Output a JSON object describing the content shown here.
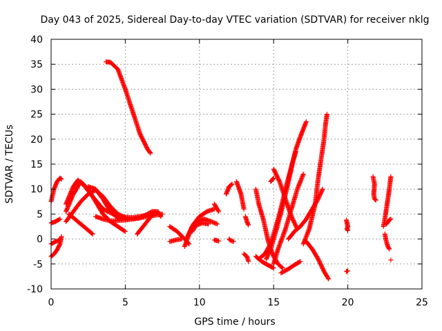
{
  "chart_data": {
    "type": "scatter",
    "title": "Day 043 of 2025, Sidereal Day-to-day VTEC variation (SDTVAR) for receiver nklg",
    "xlabel": "GPS time / hours",
    "ylabel": "SDTVAR / TECUs",
    "xlim": [
      0,
      25
    ],
    "ylim": [
      -10,
      40
    ],
    "xticks": [
      0,
      5,
      10,
      15,
      20,
      25
    ],
    "yticks": [
      -10,
      -5,
      0,
      5,
      10,
      15,
      20,
      25,
      30,
      35,
      40
    ],
    "grid": true,
    "marker": "+",
    "color": "#ff0000",
    "tracks": [
      {
        "name": "arc-high",
        "points": [
          [
            3.7,
            35.5
          ],
          [
            4.0,
            35.4
          ],
          [
            4.5,
            34
          ],
          [
            5.0,
            30
          ],
          [
            5.5,
            25.5
          ],
          [
            6.0,
            21
          ],
          [
            6.5,
            18
          ],
          [
            6.7,
            17.2
          ]
        ]
      },
      {
        "name": "arc-a",
        "points": [
          [
            0.0,
            7.5
          ],
          [
            0.2,
            10
          ],
          [
            0.4,
            11.5
          ],
          [
            0.6,
            12.2
          ],
          [
            0.7,
            12
          ]
        ]
      },
      {
        "name": "arc-b",
        "points": [
          [
            0.0,
            -3.5
          ],
          [
            0.2,
            -3
          ],
          [
            0.4,
            -2.2
          ],
          [
            0.6,
            -1
          ],
          [
            0.7,
            0.5
          ]
        ]
      },
      {
        "name": "arc-c",
        "points": [
          [
            0.0,
            3.2
          ],
          [
            0.3,
            3.5
          ],
          [
            0.6,
            4
          ]
        ]
      },
      {
        "name": "arc-d",
        "points": [
          [
            0.0,
            -1
          ],
          [
            0.3,
            -0.5
          ],
          [
            0.6,
            -0.2
          ]
        ]
      },
      {
        "name": "arc-e",
        "points": [
          [
            1.0,
            5.5
          ],
          [
            1.5,
            9
          ],
          [
            2.0,
            11.5
          ],
          [
            2.5,
            10
          ],
          [
            3.0,
            7.5
          ],
          [
            3.5,
            5
          ],
          [
            4.0,
            3.5
          ],
          [
            4.5,
            2.5
          ],
          [
            5.0,
            1.5
          ]
        ]
      },
      {
        "name": "arc-f",
        "points": [
          [
            1.0,
            7
          ],
          [
            1.5,
            10.5
          ],
          [
            1.8,
            11.8
          ],
          [
            2.2,
            10.8
          ],
          [
            2.8,
            8.5
          ],
          [
            3.5,
            6
          ],
          [
            4.5,
            4.5
          ],
          [
            5.5,
            4.3
          ],
          [
            6.5,
            4.8
          ],
          [
            7.0,
            5
          ]
        ]
      },
      {
        "name": "arc-g",
        "points": [
          [
            1.0,
            3.5
          ],
          [
            1.5,
            5.5
          ],
          [
            2.0,
            7.5
          ],
          [
            2.5,
            9
          ],
          [
            3.0,
            9.8
          ],
          [
            3.5,
            8.5
          ],
          [
            4.0,
            6.5
          ],
          [
            4.5,
            5
          ],
          [
            5.0,
            4.3
          ]
        ]
      },
      {
        "name": "arc-h",
        "points": [
          [
            1.2,
            5
          ],
          [
            1.6,
            4
          ],
          [
            2.0,
            3
          ],
          [
            2.4,
            2
          ],
          [
            2.8,
            1
          ]
        ]
      },
      {
        "name": "arc-i",
        "points": [
          [
            2.5,
            10.5
          ],
          [
            3.0,
            10
          ],
          [
            3.5,
            8
          ],
          [
            4.0,
            5.5
          ],
          [
            4.5,
            4.2
          ],
          [
            5.5,
            4
          ],
          [
            6.5,
            4.5
          ],
          [
            7.5,
            5
          ]
        ]
      },
      {
        "name": "arc-j",
        "points": [
          [
            3.0,
            4.5
          ],
          [
            3.5,
            4
          ],
          [
            4.0,
            3.6
          ],
          [
            5.0,
            3.8
          ],
          [
            6.0,
            4.2
          ],
          [
            6.8,
            5.5
          ],
          [
            7.2,
            5.5
          ],
          [
            7.4,
            4.5
          ]
        ]
      },
      {
        "name": "arc-k",
        "points": [
          [
            5.8,
            1
          ],
          [
            6.2,
            2.5
          ],
          [
            6.6,
            4
          ],
          [
            7.0,
            5.5
          ]
        ]
      },
      {
        "name": "arc-l",
        "points": [
          [
            8.0,
            2.5
          ],
          [
            8.5,
            1.5
          ],
          [
            9.0,
            0
          ],
          [
            9.3,
            -1
          ]
        ]
      },
      {
        "name": "arc-m",
        "points": [
          [
            8.0,
            -0.5
          ],
          [
            8.4,
            -0.2
          ],
          [
            8.8,
            0
          ]
        ]
      },
      {
        "name": "arc-n",
        "points": [
          [
            9.0,
            -1.5
          ],
          [
            9.3,
            1
          ],
          [
            9.6,
            3
          ],
          [
            10.0,
            4.5
          ],
          [
            10.5,
            5.5
          ],
          [
            11.0,
            6
          ]
        ]
      },
      {
        "name": "arc-o",
        "points": [
          [
            9.2,
            0.5
          ],
          [
            9.5,
            2.5
          ],
          [
            9.8,
            3.5
          ],
          [
            10.3,
            4
          ],
          [
            10.8,
            3.5
          ],
          [
            11.2,
            3
          ]
        ]
      },
      {
        "name": "arc-p",
        "points": [
          [
            9.5,
            1.5
          ],
          [
            9.8,
            2.8
          ],
          [
            10.2,
            3.2
          ],
          [
            10.6,
            3
          ]
        ]
      },
      {
        "name": "arc-q",
        "points": [
          [
            11.0,
            7
          ],
          [
            11.3,
            5.5
          ]
        ]
      },
      {
        "name": "arc-r",
        "points": [
          [
            11.0,
            -0.2
          ],
          [
            11.3,
            -0.4
          ]
        ]
      },
      {
        "name": "arc-s",
        "points": [
          [
            11.8,
            9
          ],
          [
            12.0,
            10.5
          ],
          [
            12.2,
            11
          ]
        ]
      },
      {
        "name": "arc-t",
        "points": [
          [
            12.5,
            11.5
          ],
          [
            12.8,
            9
          ],
          [
            13.0,
            6
          ]
        ]
      },
      {
        "name": "arc-u",
        "points": [
          [
            12.0,
            0
          ],
          [
            12.1,
            -0.3
          ],
          [
            12.3,
            -0.5
          ]
        ]
      },
      {
        "name": "arc-v",
        "points": [
          [
            13.1,
            4.5
          ],
          [
            13.2,
            3.5
          ],
          [
            13.3,
            2.8
          ]
        ]
      },
      {
        "name": "arc-w",
        "points": [
          [
            13.0,
            -3
          ],
          [
            13.2,
            -3.5
          ],
          [
            13.3,
            -4.5
          ]
        ]
      },
      {
        "name": "arc-x",
        "points": [
          [
            13.8,
            10
          ],
          [
            14.0,
            7
          ],
          [
            14.3,
            4
          ],
          [
            14.6,
            0
          ],
          [
            14.8,
            -2
          ],
          [
            15.0,
            -3.5
          ],
          [
            15.3,
            -5
          ],
          [
            15.6,
            -5.8
          ]
        ]
      },
      {
        "name": "arc-y",
        "points": [
          [
            13.8,
            -3.5
          ],
          [
            14.2,
            -4.5
          ],
          [
            14.6,
            -5.2
          ],
          [
            15.0,
            -5.8
          ]
        ]
      },
      {
        "name": "arc-z",
        "points": [
          [
            14.0,
            -4
          ],
          [
            14.4,
            -3
          ],
          [
            14.8,
            -1
          ],
          [
            15.0,
            1
          ],
          [
            15.4,
            5
          ],
          [
            15.8,
            10
          ],
          [
            16.2,
            14.5
          ],
          [
            16.5,
            18
          ],
          [
            16.8,
            20.5
          ],
          [
            17.0,
            22
          ],
          [
            17.2,
            23.5
          ]
        ]
      },
      {
        "name": "arc-aa",
        "points": [
          [
            14.5,
            -4
          ],
          [
            14.8,
            -2
          ],
          [
            15.2,
            2
          ],
          [
            15.6,
            6.5
          ],
          [
            16.0,
            11.5
          ],
          [
            16.3,
            15.5
          ],
          [
            16.5,
            17.5
          ]
        ]
      },
      {
        "name": "arc-ab",
        "points": [
          [
            15.0,
            -5
          ],
          [
            15.3,
            -2
          ],
          [
            15.8,
            2
          ],
          [
            16.2,
            6
          ],
          [
            16.6,
            10
          ],
          [
            17.0,
            13
          ]
        ]
      },
      {
        "name": "arc-ac",
        "points": [
          [
            15.0,
            14
          ],
          [
            15.4,
            11.5
          ],
          [
            15.8,
            8
          ],
          [
            16.2,
            4.5
          ],
          [
            16.6,
            2
          ]
        ]
      },
      {
        "name": "arc-ad",
        "points": [
          [
            14.8,
            11.5
          ],
          [
            15.0,
            12.2
          ]
        ]
      },
      {
        "name": "arc-ae",
        "points": [
          [
            15.5,
            -6.8
          ],
          [
            16.0,
            -6
          ],
          [
            16.4,
            -5.2
          ],
          [
            16.8,
            -4.5
          ]
        ]
      },
      {
        "name": "arc-af",
        "points": [
          [
            16.0,
            0
          ],
          [
            16.4,
            1.5
          ],
          [
            16.8,
            2.5
          ],
          [
            17.2,
            4
          ],
          [
            17.6,
            6
          ],
          [
            18.0,
            8
          ],
          [
            18.3,
            10
          ]
        ]
      },
      {
        "name": "arc-ag",
        "points": [
          [
            17.0,
            -1
          ],
          [
            17.4,
            2
          ],
          [
            17.8,
            7
          ],
          [
            18.0,
            12
          ],
          [
            18.2,
            16
          ],
          [
            18.4,
            20
          ],
          [
            18.5,
            23
          ],
          [
            18.6,
            25
          ]
        ]
      },
      {
        "name": "arc-ah",
        "points": [
          [
            17.2,
            -0.5
          ],
          [
            17.6,
            -2
          ],
          [
            18.0,
            -4
          ],
          [
            18.4,
            -6.5
          ],
          [
            18.7,
            -8
          ]
        ]
      },
      {
        "name": "arc-ai",
        "points": [
          [
            19.9,
            3.8
          ],
          [
            19.95,
            3.2
          ],
          [
            20.0,
            2.5
          ],
          [
            19.95,
            2
          ],
          [
            20.0,
            1.7
          ]
        ]
      },
      {
        "name": "arc-aj",
        "points": [
          [
            19.9,
            -6.5
          ],
          [
            20.0,
            -6.4
          ]
        ]
      },
      {
        "name": "arc-ak",
        "points": [
          [
            21.7,
            12.5
          ],
          [
            21.8,
            11
          ],
          [
            21.75,
            9
          ],
          [
            21.8,
            8
          ],
          [
            21.9,
            7.8
          ]
        ]
      },
      {
        "name": "arc-al",
        "points": [
          [
            22.4,
            2.5
          ],
          [
            22.5,
            4
          ],
          [
            22.6,
            6
          ],
          [
            22.7,
            8
          ],
          [
            22.8,
            10
          ],
          [
            22.9,
            12.5
          ]
        ]
      },
      {
        "name": "arc-am",
        "points": [
          [
            22.5,
            1
          ],
          [
            22.6,
            -0.5
          ],
          [
            22.7,
            -1.5
          ],
          [
            22.8,
            -2
          ]
        ]
      },
      {
        "name": "arc-an",
        "points": [
          [
            22.6,
            3
          ],
          [
            22.8,
            3.8
          ],
          [
            22.9,
            4
          ]
        ]
      },
      {
        "name": "arc-ao",
        "points": [
          [
            22.9,
            -4.2
          ]
        ]
      }
    ]
  }
}
